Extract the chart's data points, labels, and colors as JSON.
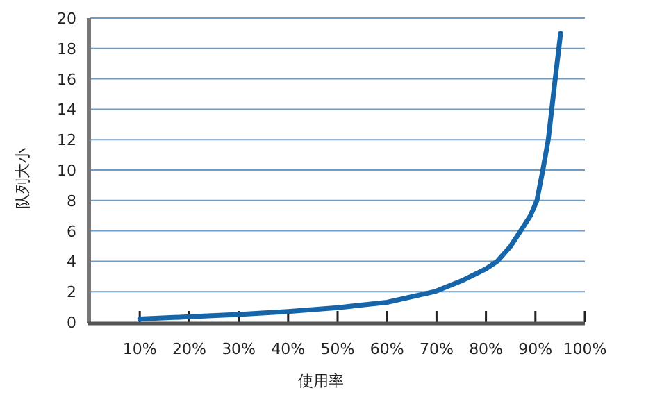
{
  "chart_data": {
    "type": "line",
    "xlabel": "使用率",
    "ylabel": "队列大小",
    "series": [
      {
        "color": "#1565a8",
        "x": [
          10,
          20,
          30,
          40,
          50,
          60,
          69.6,
          75,
          80,
          82.3,
          85,
          87,
          89,
          90.3,
          91.5,
          92.6,
          94,
          95.1
        ],
        "values": [
          0.2,
          0.35,
          0.5,
          0.7,
          0.95,
          1.3,
          2,
          2.7,
          3.5,
          4,
          5,
          6,
          7,
          8,
          10,
          12,
          16,
          19
        ]
      }
    ],
    "xlim": [
      0,
      100
    ],
    "ylim": [
      0,
      20
    ],
    "xticks": [
      {
        "value": 10,
        "label": "10%"
      },
      {
        "value": 20,
        "label": "20%"
      },
      {
        "value": 30,
        "label": "30%"
      },
      {
        "value": 40,
        "label": "40%"
      },
      {
        "value": 50,
        "label": "50%"
      },
      {
        "value": 60,
        "label": "60%"
      },
      {
        "value": 70,
        "label": "70%"
      },
      {
        "value": 80,
        "label": "80%"
      },
      {
        "value": 90,
        "label": "90%"
      },
      {
        "value": 100,
        "label": "100%"
      }
    ],
    "yticks": [
      0,
      2,
      4,
      6,
      8,
      10,
      12,
      14,
      16,
      18,
      20
    ],
    "grid": "y",
    "marker": "none",
    "line_style": "solid"
  }
}
